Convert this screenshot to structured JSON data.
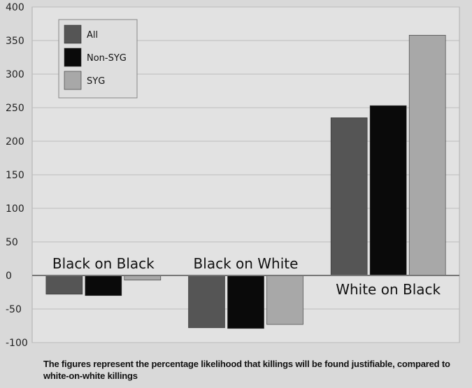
{
  "chart_data": {
    "type": "bar",
    "categories": [
      "Black on Black",
      "Black on White",
      "White on Black"
    ],
    "series": [
      {
        "name": "All",
        "values": [
          -28,
          -78,
          235
        ],
        "color": "#555555"
      },
      {
        "name": "Non-SYG",
        "values": [
          -30,
          -79,
          253
        ],
        "color": "#0a0a0a"
      },
      {
        "name": "SYG",
        "values": [
          -7,
          -73,
          358
        ],
        "color": "#a8a8a8"
      }
    ],
    "ylim": [
      -100,
      400
    ],
    "yticks": [
      -100,
      -50,
      0,
      50,
      100,
      150,
      200,
      250,
      300,
      350,
      400
    ],
    "grid": true,
    "legend": "top-left"
  },
  "caption": "The figures represent the percentage likelihood that killings will be found justifiable, compared to white-on-white killings"
}
